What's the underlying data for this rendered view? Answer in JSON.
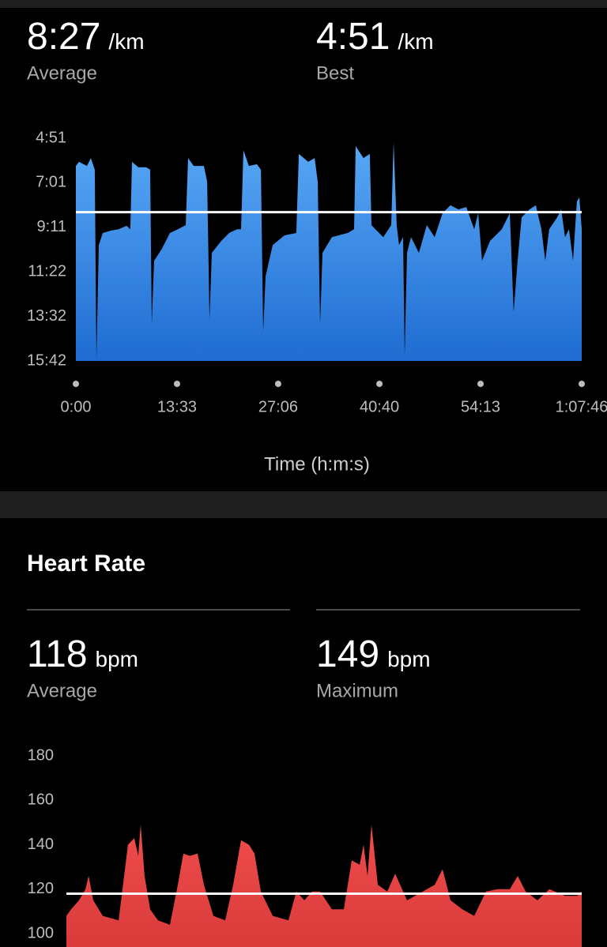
{
  "chart_data": [
    {
      "type": "area",
      "stats": [
        {
          "value": 507,
          "label": "8:27",
          "unit": "/km",
          "caption": "Average"
        },
        {
          "value": 291,
          "label": "4:51",
          "unit": "/km",
          "caption": "Best"
        }
      ],
      "x_label": "Time (h:m:s)",
      "gradient": [
        "#58a8f6",
        "#1f6cd2"
      ],
      "line_color": "#ffffff",
      "y_inverted": true,
      "xlim": [
        0,
        4066
      ],
      "xticks": [
        {
          "value": 0,
          "label": "0:00"
        },
        {
          "value": 813,
          "label": "13:33"
        },
        {
          "value": 1626,
          "label": "27:06"
        },
        {
          "value": 2440,
          "label": "40:40"
        },
        {
          "value": 3253,
          "label": "54:13"
        },
        {
          "value": 4066,
          "label": "1:07:46"
        }
      ],
      "ylim": [
        291,
        942
      ],
      "yticks": [
        {
          "value": 291,
          "label": "4:51"
        },
        {
          "value": 421,
          "label": "7:01"
        },
        {
          "value": 551,
          "label": "9:11"
        },
        {
          "value": 682,
          "label": "11:22"
        },
        {
          "value": 812,
          "label": "13:32"
        },
        {
          "value": 942,
          "label": "15:42"
        }
      ],
      "x": [
        0,
        25,
        89,
        121,
        152,
        165,
        184,
        216,
        280,
        343,
        407,
        438,
        451,
        502,
        565,
        597,
        610,
        629,
        692,
        756,
        820,
        883,
        902,
        947,
        1029,
        1055,
        1074,
        1093,
        1169,
        1232,
        1296,
        1328,
        1347,
        1391,
        1455,
        1487,
        1506,
        1525,
        1582,
        1677,
        1772,
        1792,
        1868,
        1919,
        1944,
        1963,
        1982,
        2058,
        2185,
        2236,
        2249,
        2312,
        2363,
        2376,
        2408,
        2471,
        2535,
        2554,
        2579,
        2598,
        2630,
        2643,
        2662,
        2694,
        2757,
        2821,
        2884,
        2948,
        3011,
        3075,
        3138,
        3202,
        3234,
        3265,
        3329,
        3424,
        3488,
        3519,
        3551,
        3583,
        3647,
        3697,
        3742,
        3773,
        3805,
        3869,
        3901,
        3932,
        3964,
        3996,
        4027,
        4047,
        4066
      ],
      "values": [
        372,
        360,
        372,
        349,
        383,
        938,
        603,
        568,
        561,
        557,
        547,
        557,
        360,
        376,
        376,
        383,
        834,
        649,
        614,
        568,
        557,
        545,
        349,
        372,
        372,
        418,
        822,
        626,
        591,
        568,
        557,
        557,
        326,
        372,
        367,
        383,
        857,
        695,
        603,
        575,
        568,
        337,
        360,
        349,
        418,
        834,
        626,
        580,
        568,
        557,
        314,
        349,
        337,
        545,
        557,
        580,
        545,
        303,
        545,
        603,
        580,
        926,
        626,
        580,
        626,
        545,
        580,
        510,
        487,
        499,
        492,
        557,
        510,
        649,
        591,
        557,
        510,
        799,
        649,
        522,
        499,
        487,
        557,
        649,
        557,
        522,
        499,
        580,
        557,
        649,
        476,
        464,
        557
      ]
    },
    {
      "type": "area",
      "title": "Heart Rate",
      "stats": [
        {
          "value": 118,
          "unit": "bpm",
          "caption": "Average"
        },
        {
          "value": 149,
          "unit": "bpm",
          "caption": "Maximum"
        }
      ],
      "gradient": [
        "#f04c4c",
        "#d93b3b"
      ],
      "line_color": "#ffffff",
      "y_inverted": false,
      "xlim": [
        0,
        4066
      ],
      "ylim": [
        94,
        180
      ],
      "yticks": [
        180,
        160,
        140,
        120,
        100
      ],
      "x": [
        0,
        37,
        100,
        150,
        175,
        212,
        287,
        412,
        486,
        536,
        567,
        586,
        617,
        661,
        723,
        817,
        879,
        923,
        973,
        1035,
        1085,
        1160,
        1253,
        1316,
        1378,
        1441,
        1484,
        1534,
        1628,
        1752,
        1815,
        1877,
        1939,
        2002,
        2095,
        2189,
        2251,
        2314,
        2345,
        2376,
        2407,
        2457,
        2532,
        2594,
        2688,
        2812,
        2906,
        2968,
        3031,
        3124,
        3218,
        3311,
        3405,
        3499,
        3561,
        3624,
        3717,
        3811,
        3935,
        4029,
        4066
      ],
      "values": [
        108,
        111,
        115,
        120,
        126,
        115,
        108,
        106,
        140,
        143,
        135,
        149,
        126,
        111,
        106,
        104,
        122,
        136,
        135,
        136,
        122,
        108,
        106,
        122,
        142,
        140,
        136,
        119,
        108,
        106,
        119,
        115,
        119,
        119,
        111,
        111,
        133,
        131,
        140,
        126,
        149,
        122,
        119,
        127,
        115,
        119,
        122,
        129,
        115,
        111,
        108,
        119,
        120,
        120,
        126,
        119,
        115,
        120,
        117,
        117,
        119
      ]
    }
  ]
}
